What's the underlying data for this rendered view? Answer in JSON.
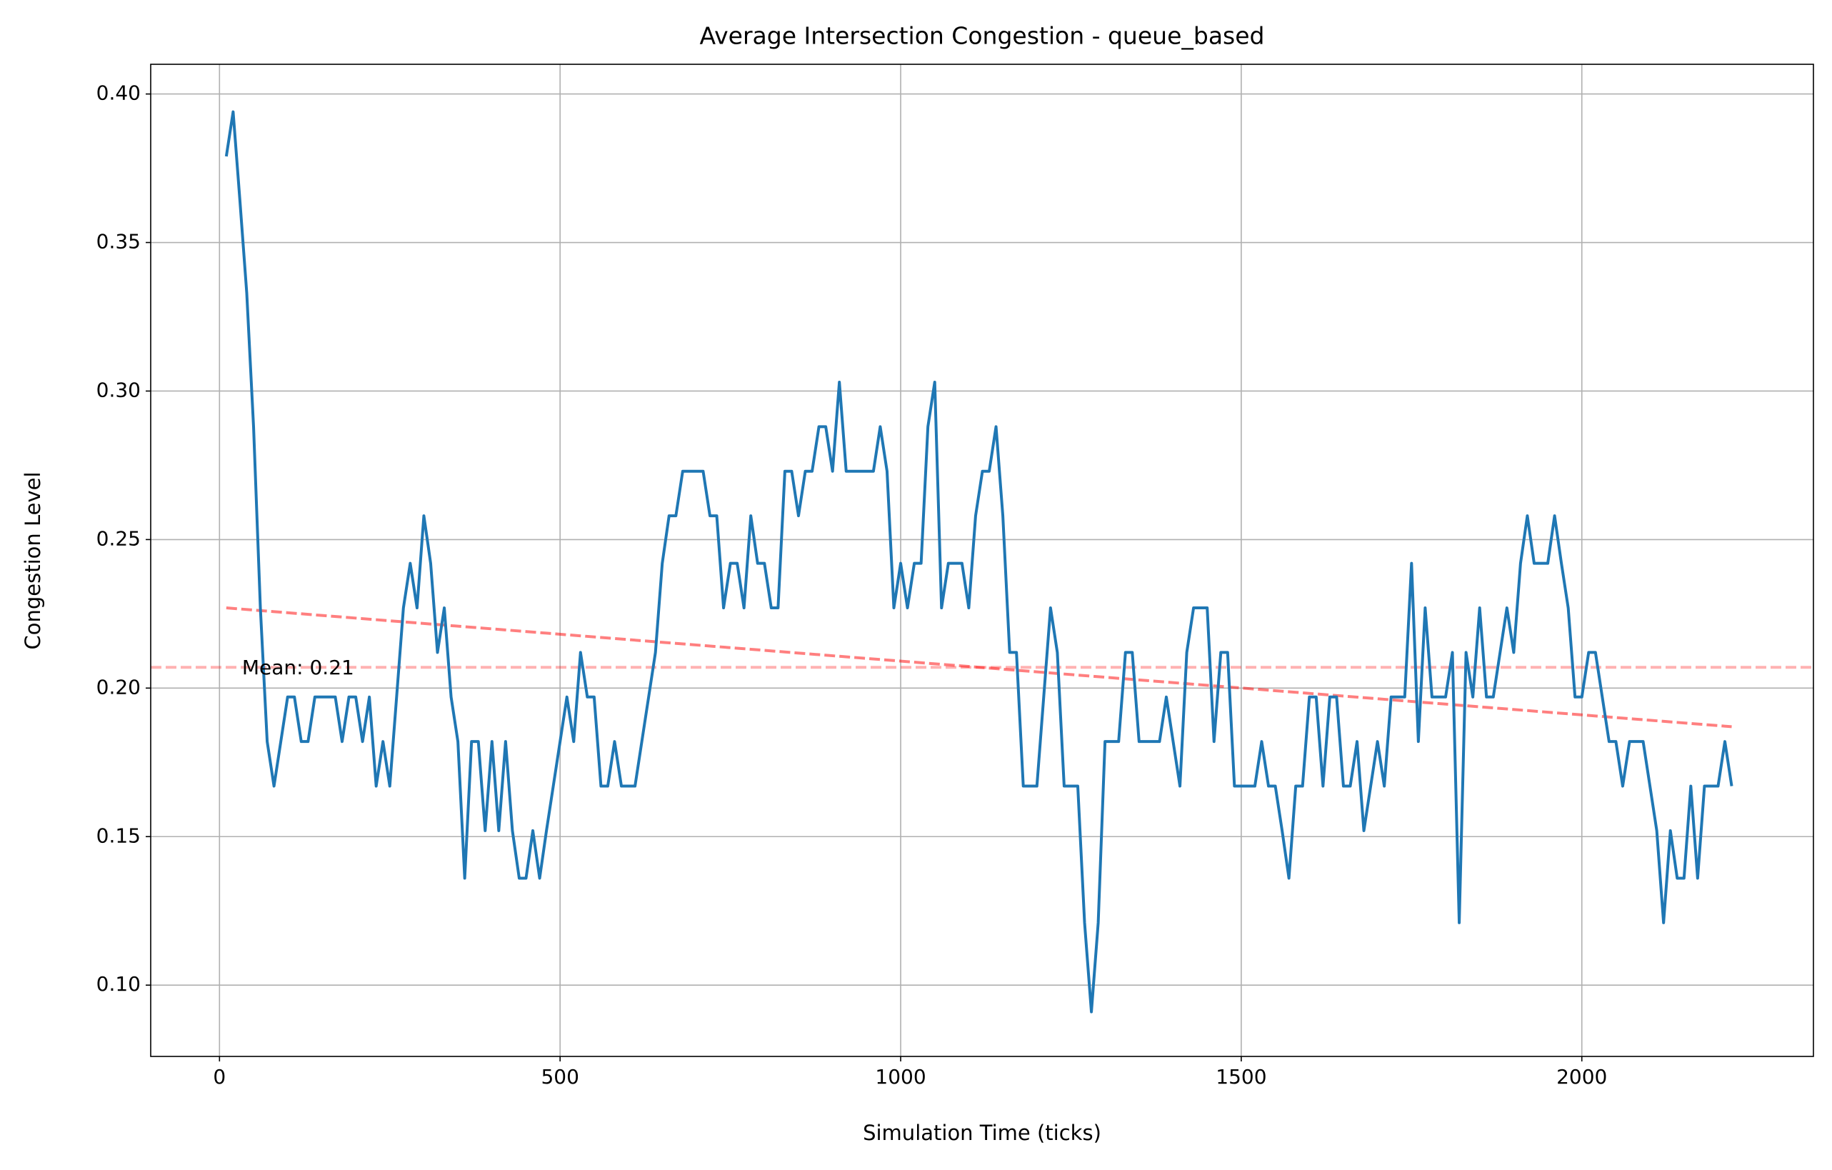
{
  "chart_data": {
    "type": "line",
    "title": "Average Intersection Congestion - queue_based",
    "x_label": "Simulation Time (ticks)",
    "y_label": "Congestion Level",
    "x": [
      10,
      20,
      30,
      40,
      50,
      60,
      70,
      80,
      90,
      100,
      110,
      120,
      130,
      140,
      150,
      160,
      170,
      180,
      190,
      200,
      210,
      220,
      230,
      240,
      250,
      260,
      270,
      280,
      290,
      300,
      310,
      320,
      330,
      340,
      350,
      360,
      370,
      380,
      390,
      400,
      410,
      420,
      430,
      440,
      450,
      460,
      470,
      480,
      490,
      500,
      510,
      520,
      530,
      540,
      550,
      560,
      570,
      580,
      590,
      600,
      610,
      620,
      630,
      640,
      650,
      660,
      670,
      680,
      690,
      700,
      710,
      720,
      730,
      740,
      750,
      760,
      770,
      780,
      790,
      800,
      810,
      820,
      830,
      840,
      850,
      860,
      870,
      880,
      890,
      900,
      910,
      920,
      930,
      940,
      950,
      960,
      970,
      980,
      990,
      1000,
      1010,
      1020,
      1030,
      1040,
      1050,
      1060,
      1070,
      1080,
      1090,
      1100,
      1110,
      1120,
      1130,
      1140,
      1150,
      1160,
      1170,
      1180,
      1190,
      1200,
      1210,
      1220,
      1230,
      1240,
      1250,
      1260,
      1270,
      1280,
      1290,
      1300,
      1310,
      1320,
      1330,
      1340,
      1350,
      1360,
      1370,
      1380,
      1390,
      1400,
      1410,
      1420,
      1430,
      1440,
      1450,
      1460,
      1470,
      1480,
      1490,
      1500,
      1510,
      1520,
      1530,
      1540,
      1550,
      1560,
      1570,
      1580,
      1590,
      1600,
      1610,
      1620,
      1630,
      1640,
      1650,
      1660,
      1670,
      1680,
      1690,
      1700,
      1710,
      1720,
      1730,
      1740,
      1750,
      1760,
      1770,
      1780,
      1790,
      1800,
      1810,
      1820,
      1830,
      1840,
      1850,
      1860,
      1870,
      1880,
      1890,
      1900,
      1910,
      1920,
      1930,
      1940,
      1950,
      1960,
      1970,
      1980,
      1990,
      2000,
      2010,
      2020,
      2030,
      2040,
      2050,
      2060,
      2070,
      2080,
      2090,
      2100,
      2110,
      2120,
      2130,
      2140,
      2150,
      2160,
      2170,
      2180,
      2190,
      2200,
      2210,
      2220
    ],
    "series": [
      {
        "color": "#1f77b4",
        "values": [
          0.379,
          0.394,
          0.364,
          0.333,
          0.288,
          0.227,
          0.182,
          0.167,
          0.182,
          0.197,
          0.197,
          0.182,
          0.182,
          0.197,
          0.197,
          0.197,
          0.197,
          0.182,
          0.197,
          0.197,
          0.182,
          0.197,
          0.167,
          0.182,
          0.167,
          0.197,
          0.227,
          0.242,
          0.227,
          0.258,
          0.242,
          0.212,
          0.227,
          0.197,
          0.182,
          0.136,
          0.182,
          0.182,
          0.152,
          0.182,
          0.152,
          0.182,
          0.152,
          0.136,
          0.136,
          0.152,
          0.136,
          0.152,
          0.167,
          0.182,
          0.197,
          0.182,
          0.212,
          0.197,
          0.197,
          0.167,
          0.167,
          0.182,
          0.167,
          0.167,
          0.167,
          0.182,
          0.197,
          0.212,
          0.242,
          0.258,
          0.258,
          0.273,
          0.273,
          0.273,
          0.273,
          0.258,
          0.258,
          0.227,
          0.242,
          0.242,
          0.227,
          0.258,
          0.242,
          0.242,
          0.227,
          0.227,
          0.273,
          0.273,
          0.258,
          0.273,
          0.273,
          0.288,
          0.288,
          0.273,
          0.303,
          0.273,
          0.273,
          0.273,
          0.273,
          0.273,
          0.288,
          0.273,
          0.227,
          0.242,
          0.227,
          0.242,
          0.242,
          0.288,
          0.303,
          0.227,
          0.242,
          0.242,
          0.242,
          0.227,
          0.258,
          0.273,
          0.273,
          0.288,
          0.258,
          0.212,
          0.212,
          0.167,
          0.167,
          0.167,
          0.197,
          0.227,
          0.212,
          0.167,
          0.167,
          0.167,
          0.121,
          0.091,
          0.121,
          0.182,
          0.182,
          0.182,
          0.212,
          0.212,
          0.182,
          0.182,
          0.182,
          0.182,
          0.197,
          0.182,
          0.167,
          0.212,
          0.227,
          0.227,
          0.227,
          0.182,
          0.212,
          0.212,
          0.167,
          0.167,
          0.167,
          0.167,
          0.182,
          0.167,
          0.167,
          0.152,
          0.136,
          0.167,
          0.167,
          0.197,
          0.197,
          0.167,
          0.197,
          0.197,
          0.167,
          0.167,
          0.182,
          0.152,
          0.167,
          0.182,
          0.167,
          0.197,
          0.197,
          0.197,
          0.242,
          0.182,
          0.227,
          0.197,
          0.197,
          0.197,
          0.212,
          0.121,
          0.212,
          0.197,
          0.227,
          0.197,
          0.197,
          0.212,
          0.227,
          0.212,
          0.242,
          0.258,
          0.242,
          0.242,
          0.242,
          0.258,
          0.242,
          0.227,
          0.197,
          0.197,
          0.212,
          0.212,
          0.197,
          0.182,
          0.182,
          0.167,
          0.182,
          0.182,
          0.182,
          0.167,
          0.152,
          0.121,
          0.152,
          0.136,
          0.136,
          0.167,
          0.136,
          0.167,
          0.167,
          0.167,
          0.182,
          0.167
        ]
      }
    ],
    "trend_line": {
      "x": [
        10,
        2220
      ],
      "values": [
        0.227,
        0.187
      ],
      "color": "#ff0000"
    },
    "mean_line": {
      "value": 0.207,
      "color": "#ff0000"
    },
    "annotation": "Mean: 0.21",
    "xlim": [
      -101,
      2340
    ],
    "ylim": [
      0.076,
      0.41
    ],
    "xticks": [
      0,
      500,
      1000,
      1500,
      2000
    ],
    "yticks": [
      {
        "value": 0.1,
        "label": "0.10"
      },
      0.15,
      {
        "value": 0.2,
        "label": "0.20"
      },
      0.25,
      {
        "value": 0.3,
        "label": "0.30"
      },
      0.35,
      {
        "value": 0.4,
        "label": "0.40"
      }
    ],
    "grid": true
  }
}
